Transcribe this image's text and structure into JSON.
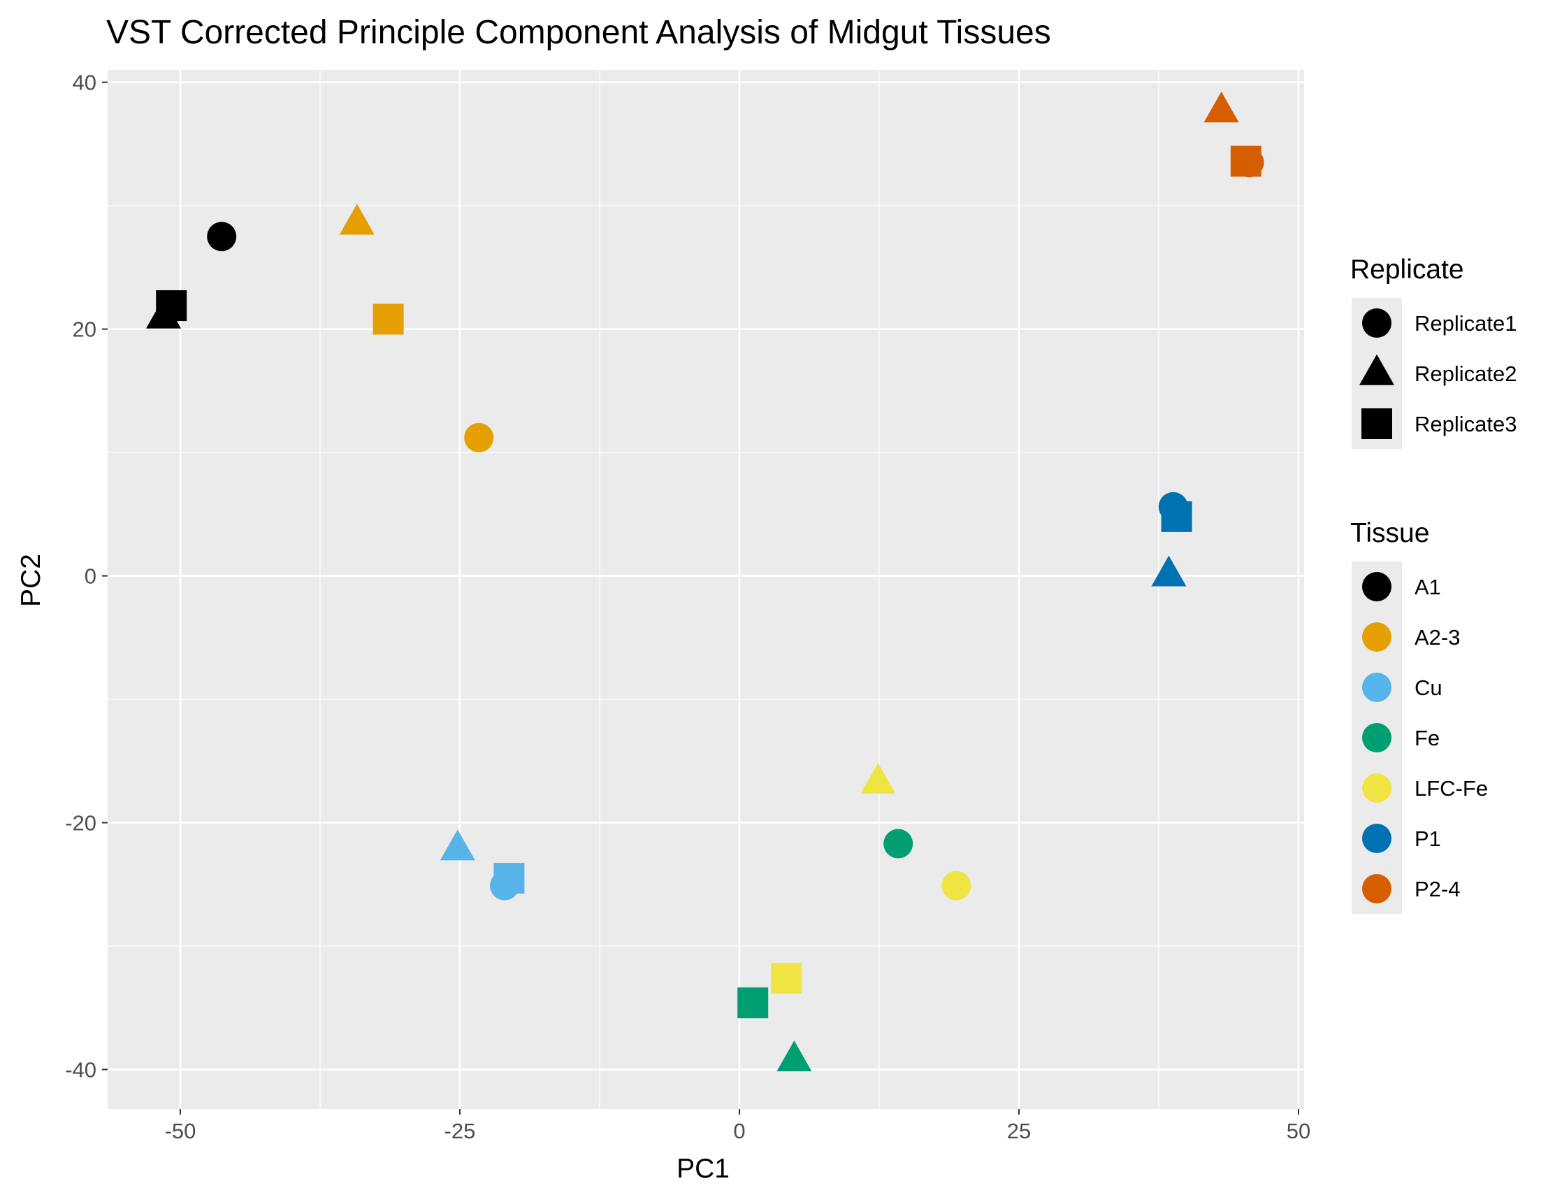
{
  "chart_data": {
    "type": "scatter",
    "title": "VST Corrected Principle Component Analysis of Midgut Tissues",
    "xlabel": "PC1",
    "ylabel": "PC2",
    "xlim": [
      -56.5,
      50.5
    ],
    "ylim": [
      -43.2,
      41.0
    ],
    "x_ticks": [
      -50,
      -25,
      0,
      25,
      50
    ],
    "y_ticks": [
      -40,
      -20,
      0,
      20,
      40
    ],
    "x_tick_labels": [
      "-50",
      "-25",
      "0",
      "25",
      "50"
    ],
    "y_tick_labels": [
      "-40",
      "-20",
      "0",
      "20",
      "40"
    ],
    "grid": true,
    "background": "#ebebeb",
    "gridline_color": "#ffffff",
    "legend_position": "right",
    "legends": [
      {
        "title": "Replicate",
        "kind": "shape",
        "entries": [
          {
            "label": "Replicate1",
            "shape": "circle"
          },
          {
            "label": "Replicate2",
            "shape": "triangle"
          },
          {
            "label": "Replicate3",
            "shape": "square"
          }
        ]
      },
      {
        "title": "Tissue",
        "kind": "color",
        "entries": [
          {
            "label": "A1",
            "color": "#000000"
          },
          {
            "label": "A2-3",
            "color": "#e69f00"
          },
          {
            "label": "Cu",
            "color": "#56b4e9"
          },
          {
            "label": "Fe",
            "color": "#009e73"
          },
          {
            "label": "LFC-Fe",
            "color": "#f0e442"
          },
          {
            "label": "P1",
            "color": "#0072b2"
          },
          {
            "label": "P2-4",
            "color": "#d55e00"
          }
        ]
      }
    ],
    "points": [
      {
        "tissue": "A1",
        "replicate": "Replicate1",
        "x": -46.3,
        "y": 27.5
      },
      {
        "tissue": "A1",
        "replicate": "Replicate2",
        "x": -51.5,
        "y": 21.0
      },
      {
        "tissue": "A1",
        "replicate": "Replicate3",
        "x": -50.8,
        "y": 21.9
      },
      {
        "tissue": "A2-3",
        "replicate": "Replicate1",
        "x": -23.3,
        "y": 11.2
      },
      {
        "tissue": "A2-3",
        "replicate": "Replicate2",
        "x": -34.2,
        "y": 28.6
      },
      {
        "tissue": "A2-3",
        "replicate": "Replicate3",
        "x": -31.4,
        "y": 20.8
      },
      {
        "tissue": "Cu",
        "replicate": "Replicate1",
        "x": -21.0,
        "y": -25.1
      },
      {
        "tissue": "Cu",
        "replicate": "Replicate2",
        "x": -25.2,
        "y": -22.1
      },
      {
        "tissue": "Cu",
        "replicate": "Replicate3",
        "x": -20.6,
        "y": -24.5
      },
      {
        "tissue": "Fe",
        "replicate": "Replicate1",
        "x": 14.2,
        "y": -21.7
      },
      {
        "tissue": "Fe",
        "replicate": "Replicate2",
        "x": 4.9,
        "y": -39.2
      },
      {
        "tissue": "Fe",
        "replicate": "Replicate3",
        "x": 1.2,
        "y": -34.6
      },
      {
        "tissue": "LFC-Fe",
        "replicate": "Replicate1",
        "x": 19.4,
        "y": -25.1
      },
      {
        "tissue": "LFC-Fe",
        "replicate": "Replicate2",
        "x": 12.4,
        "y": -16.7
      },
      {
        "tissue": "LFC-Fe",
        "replicate": "Replicate3",
        "x": 4.2,
        "y": -32.6
      },
      {
        "tissue": "P1",
        "replicate": "Replicate1",
        "x": 38.8,
        "y": 5.6
      },
      {
        "tissue": "P1",
        "replicate": "Replicate2",
        "x": 38.4,
        "y": 0.1
      },
      {
        "tissue": "P1",
        "replicate": "Replicate3",
        "x": 39.1,
        "y": 4.8
      },
      {
        "tissue": "P2-4",
        "replicate": "Replicate1",
        "x": 45.6,
        "y": 33.5
      },
      {
        "tissue": "P2-4",
        "replicate": "Replicate2",
        "x": 43.1,
        "y": 37.7
      },
      {
        "tissue": "P2-4",
        "replicate": "Replicate3",
        "x": 45.3,
        "y": 33.6
      }
    ]
  }
}
